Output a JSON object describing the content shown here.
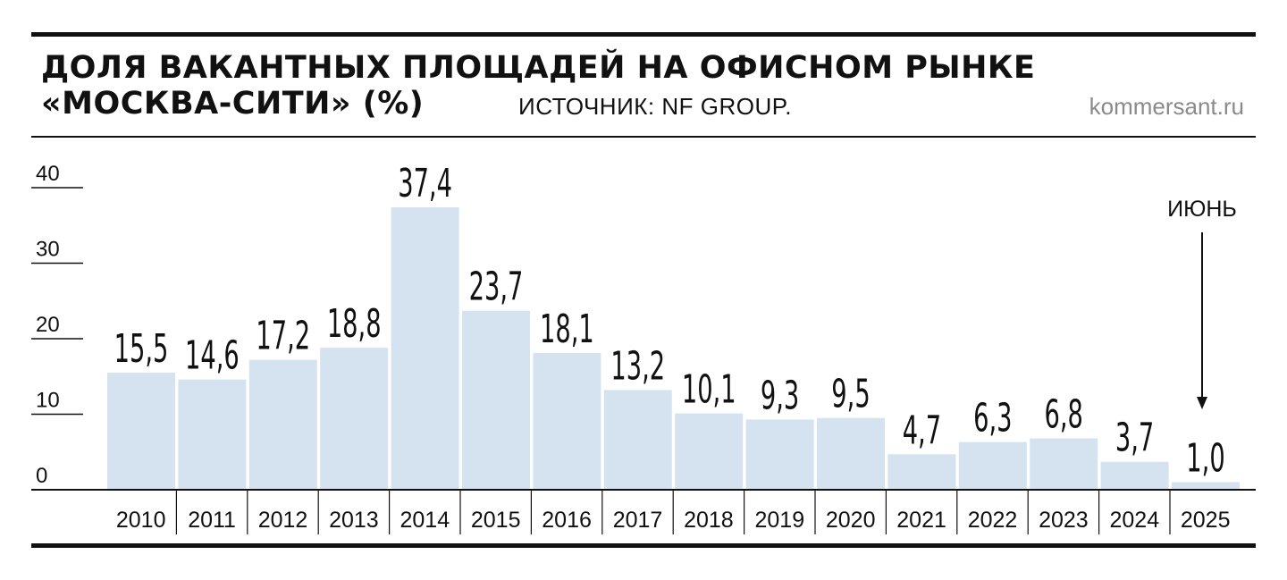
{
  "header": {
    "title_line1": "ДОЛЯ ВАКАНТНЫХ ПЛОЩАДЕЙ НА ОФИСНОМ РЫНКЕ",
    "title_line2": "«МОСКВА-СИТИ» (%)",
    "source": "ИСТОЧНИК: NF GROUP.",
    "brand": "kommersant.ru"
  },
  "chart_data": {
    "type": "bar",
    "title": "ДОЛЯ ВАКАНТНЫХ ПЛОЩАДЕЙ НА ОФИСНОМ РЫНКЕ «МОСКВА-СИТИ» (%)",
    "categories": [
      "2010",
      "2011",
      "2012",
      "2013",
      "2014",
      "2015",
      "2016",
      "2017",
      "2018",
      "2019",
      "2020",
      "2021",
      "2022",
      "2023",
      "2024",
      "2025"
    ],
    "values": [
      15.5,
      14.6,
      17.2,
      18.8,
      37.4,
      23.7,
      18.1,
      13.2,
      10.1,
      9.3,
      9.5,
      4.7,
      6.3,
      6.8,
      3.7,
      1.0
    ],
    "value_labels": [
      "15,5",
      "14,6",
      "17,2",
      "18,8",
      "37,4",
      "23,7",
      "18,1",
      "13,2",
      "10,1",
      "9,3",
      "9,5",
      "4,7",
      "6,3",
      "6,8",
      "3,7",
      "1,0"
    ],
    "y_ticks": [
      "0",
      "10",
      "20",
      "30",
      "40"
    ],
    "ylim": [
      0,
      40
    ],
    "grid": false,
    "bar_color": "#d4e3ef",
    "annotation": {
      "category": "2025",
      "text": "ИЮНЬ"
    }
  }
}
